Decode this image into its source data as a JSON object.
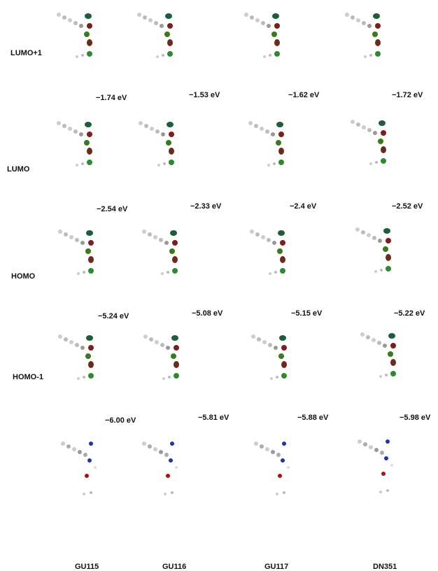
{
  "rows": [
    {
      "label": "LUMO+1",
      "energies": [
        "−1.74 eV",
        "−1.53 eV",
        "−1.62 eV",
        "−1.72 eV"
      ]
    },
    {
      "label": "LUMO",
      "energies": [
        "−2.54 eV",
        "−2.33 eV",
        "−2.4 eV",
        "−2.52 eV"
      ]
    },
    {
      "label": "HOMO",
      "energies": [
        "−5.24 eV",
        "−5.08 eV",
        "−5.15 eV",
        "−5.22 eV"
      ]
    },
    {
      "label": "HOMO-1",
      "energies": [
        "−6.00 eV",
        "−5.81 eV",
        "−5.88 eV",
        "−5.98 eV"
      ]
    }
  ],
  "columns": [
    "GU115",
    "GU116",
    "GU117",
    "DN351"
  ]
}
